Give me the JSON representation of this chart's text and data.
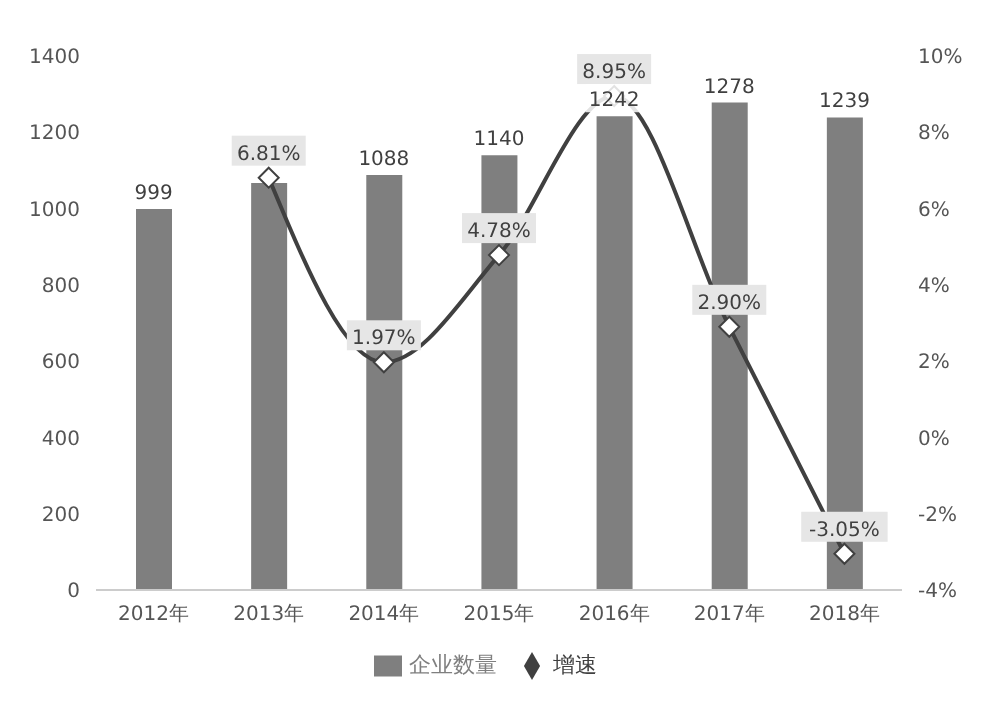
{
  "chart_data": {
    "type": "bar",
    "categories": [
      "2012年",
      "2013年",
      "2014年",
      "2015年",
      "2016年",
      "2017年",
      "2018年"
    ],
    "series": [
      {
        "name": "企业数量",
        "color": "#7f7f7f",
        "values": [
          999,
          1067,
          1088,
          1140,
          1242,
          1278,
          1239
        ],
        "value_labels": [
          "999",
          null,
          "1088",
          "1140",
          "1242",
          "1278",
          "1239"
        ]
      },
      {
        "name": "增速",
        "type": "line",
        "axis": "y2",
        "color": "#404040",
        "marker": "diamond",
        "values": [
          null,
          6.81,
          1.97,
          4.78,
          8.95,
          2.9,
          -3.05
        ],
        "value_labels": [
          null,
          "6.81%",
          "1.97%",
          "4.78%",
          "8.95%",
          "2.90%",
          "-3.05%"
        ]
      }
    ],
    "ylim": [
      0,
      1400
    ],
    "yticks": [
      0,
      200,
      400,
      600,
      800,
      1000,
      1200,
      1400
    ],
    "y2lim": [
      -4,
      10
    ],
    "y2ticks": [
      {
        "value": -4,
        "label": "-4%"
      },
      {
        "value": -2,
        "label": "-2%"
      },
      {
        "value": 0,
        "label": "0%"
      },
      {
        "value": 2,
        "label": "2%"
      },
      {
        "value": 4,
        "label": "4%"
      },
      {
        "value": 6,
        "label": "6%"
      },
      {
        "value": 8,
        "label": "8%"
      },
      {
        "value": 10,
        "label": "10%"
      }
    ],
    "legend": "bottom",
    "grid": false
  }
}
